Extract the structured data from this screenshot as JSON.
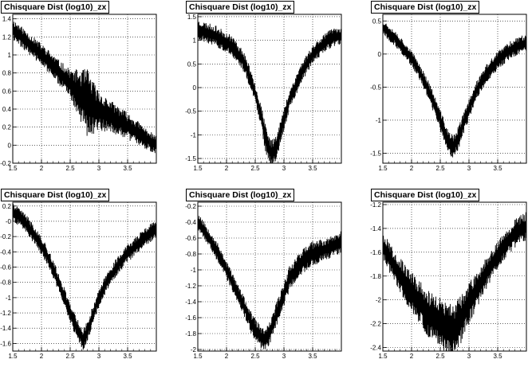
{
  "chart_data": [
    {
      "type": "line",
      "title": "Chisquare Dist (log10)_zx",
      "xlim": [
        1.5,
        4.0
      ],
      "ylim": [
        -0.2,
        1.45
      ],
      "xticks": [
        "1.5",
        "2",
        "2.5",
        "3",
        "3.5"
      ],
      "yticks": [
        "-0.2",
        "0",
        "0.2",
        "0.4",
        "0.6",
        "0.8",
        "1",
        "1.2",
        "1.4"
      ],
      "grid": true,
      "x": [
        1.5,
        1.7,
        1.9,
        2.1,
        2.3,
        2.5,
        2.7,
        2.8,
        2.9,
        3.0,
        3.2,
        3.4,
        3.6,
        3.8,
        4.0
      ],
      "y": [
        1.28,
        1.17,
        1.06,
        0.94,
        0.81,
        0.68,
        0.54,
        0.47,
        0.42,
        0.38,
        0.32,
        0.25,
        0.17,
        0.08,
        0.0
      ],
      "band": [
        0.12,
        0.12,
        0.12,
        0.13,
        0.14,
        0.16,
        0.3,
        0.38,
        0.3,
        0.22,
        0.18,
        0.16,
        0.14,
        0.12,
        0.1
      ],
      "seed": 11
    },
    {
      "type": "line",
      "title": "Chisquare Dist (log10)_zx",
      "xlim": [
        1.5,
        4.0
      ],
      "ylim": [
        -1.6,
        1.55
      ],
      "xticks": [
        "1.5",
        "2",
        "2.5",
        "3",
        "3.5"
      ],
      "yticks": [
        "-1.5",
        "-1",
        "-0.5",
        "0",
        "0.5",
        "1",
        "1.5"
      ],
      "grid": true,
      "x": [
        1.5,
        1.8,
        2.1,
        2.3,
        2.45,
        2.6,
        2.7,
        2.78,
        2.85,
        2.95,
        3.1,
        3.3,
        3.5,
        3.7,
        3.85,
        4.0
      ],
      "y": [
        1.22,
        1.1,
        0.88,
        0.55,
        0.1,
        -0.6,
        -1.2,
        -1.4,
        -1.3,
        -0.9,
        -0.25,
        0.3,
        0.7,
        0.95,
        1.05,
        1.1
      ],
      "band": [
        0.22,
        0.22,
        0.22,
        0.22,
        0.22,
        0.25,
        0.3,
        0.3,
        0.3,
        0.25,
        0.22,
        0.22,
        0.2,
        0.2,
        0.2,
        0.2
      ],
      "seed": 23
    },
    {
      "type": "line",
      "title": "Chisquare Dist (log10)_zx",
      "xlim": [
        1.5,
        4.0
      ],
      "ylim": [
        -1.65,
        0.6
      ],
      "xticks": [
        "1.5",
        "2",
        "2.5",
        "3",
        "3.5"
      ],
      "yticks": [
        "-1.5",
        "-1",
        "-0.5",
        "0",
        "0.5"
      ],
      "grid": true,
      "x": [
        1.5,
        1.7,
        1.9,
        2.1,
        2.3,
        2.5,
        2.65,
        2.72,
        2.8,
        2.95,
        3.1,
        3.3,
        3.5,
        3.7,
        3.85,
        4.0
      ],
      "y": [
        0.4,
        0.25,
        0.05,
        -0.2,
        -0.55,
        -1.0,
        -1.35,
        -1.42,
        -1.3,
        -0.95,
        -0.6,
        -0.3,
        -0.1,
        0.05,
        0.12,
        0.17
      ],
      "band": [
        0.12,
        0.12,
        0.12,
        0.12,
        0.14,
        0.16,
        0.18,
        0.2,
        0.18,
        0.16,
        0.14,
        0.14,
        0.14,
        0.14,
        0.14,
        0.14
      ],
      "seed": 37
    },
    {
      "type": "line",
      "title": "Chisquare Dist (log10)_zx",
      "xlim": [
        1.5,
        4.0
      ],
      "ylim": [
        -1.7,
        0.25
      ],
      "xticks": [
        "1.5",
        "2",
        "2.5",
        "3",
        "3.5"
      ],
      "yticks": [
        "0.2",
        "-0",
        "-0.2",
        "-0.4",
        "-0.6",
        "-0.8",
        "-1",
        "-1.2",
        "-1.4",
        "-1.6"
      ],
      "grid": true,
      "x": [
        1.5,
        1.7,
        1.9,
        2.1,
        2.3,
        2.5,
        2.65,
        2.72,
        2.8,
        2.95,
        3.1,
        3.3,
        3.5,
        3.7,
        3.85,
        4.0
      ],
      "y": [
        0.12,
        0.0,
        -0.2,
        -0.45,
        -0.8,
        -1.2,
        -1.45,
        -1.55,
        -1.45,
        -1.1,
        -0.85,
        -0.6,
        -0.42,
        -0.28,
        -0.18,
        -0.1
      ],
      "band": [
        0.12,
        0.12,
        0.12,
        0.12,
        0.12,
        0.14,
        0.14,
        0.14,
        0.14,
        0.12,
        0.12,
        0.12,
        0.12,
        0.12,
        0.12,
        0.12
      ],
      "seed": 41
    },
    {
      "type": "line",
      "title": "Chisquare Dist (log10)_zx",
      "xlim": [
        1.5,
        4.0
      ],
      "ylim": [
        -2.02,
        -0.15
      ],
      "xticks": [
        "1.5",
        "2",
        "2.5",
        "3",
        "3.5"
      ],
      "yticks": [
        "-0.2",
        "-0.4",
        "-0.6",
        "-0.8",
        "-1",
        "-1.2",
        "-1.4",
        "-1.6",
        "-1.8",
        "-2"
      ],
      "grid": true,
      "x": [
        1.5,
        1.7,
        1.9,
        2.1,
        2.3,
        2.45,
        2.6,
        2.68,
        2.75,
        2.9,
        3.1,
        3.3,
        3.5,
        3.7,
        3.85,
        4.0
      ],
      "y": [
        -0.4,
        -0.6,
        -0.85,
        -1.15,
        -1.45,
        -1.7,
        -1.85,
        -1.88,
        -1.8,
        -1.5,
        -1.1,
        -0.9,
        -0.8,
        -0.75,
        -0.7,
        -0.65
      ],
      "band": [
        0.12,
        0.12,
        0.12,
        0.12,
        0.12,
        0.14,
        0.14,
        0.14,
        0.14,
        0.16,
        0.16,
        0.16,
        0.16,
        0.14,
        0.14,
        0.14
      ],
      "seed": 53
    },
    {
      "type": "line",
      "title": "Chisquare Dist (log10)_zx",
      "xlim": [
        1.5,
        4.0
      ],
      "ylim": [
        -2.43,
        -1.18
      ],
      "xticks": [
        "1.5",
        "2",
        "2.5",
        "3",
        "3.5"
      ],
      "yticks": [
        "-1.2",
        "-1.4",
        "-1.6",
        "-1.8",
        "-2",
        "-2.2",
        "-2.4"
      ],
      "grid": true,
      "x": [
        1.5,
        1.7,
        1.9,
        2.1,
        2.3,
        2.5,
        2.6,
        2.7,
        2.8,
        2.9,
        3.1,
        3.3,
        3.5,
        3.7,
        3.85,
        4.0
      ],
      "y": [
        -1.55,
        -1.72,
        -1.87,
        -2.0,
        -2.12,
        -2.2,
        -2.24,
        -2.25,
        -2.22,
        -2.12,
        -1.95,
        -1.78,
        -1.62,
        -1.5,
        -1.42,
        -1.38
      ],
      "band": [
        0.12,
        0.14,
        0.16,
        0.18,
        0.2,
        0.22,
        0.22,
        0.22,
        0.22,
        0.2,
        0.16,
        0.14,
        0.12,
        0.12,
        0.12,
        0.12
      ],
      "seed": 67
    }
  ]
}
